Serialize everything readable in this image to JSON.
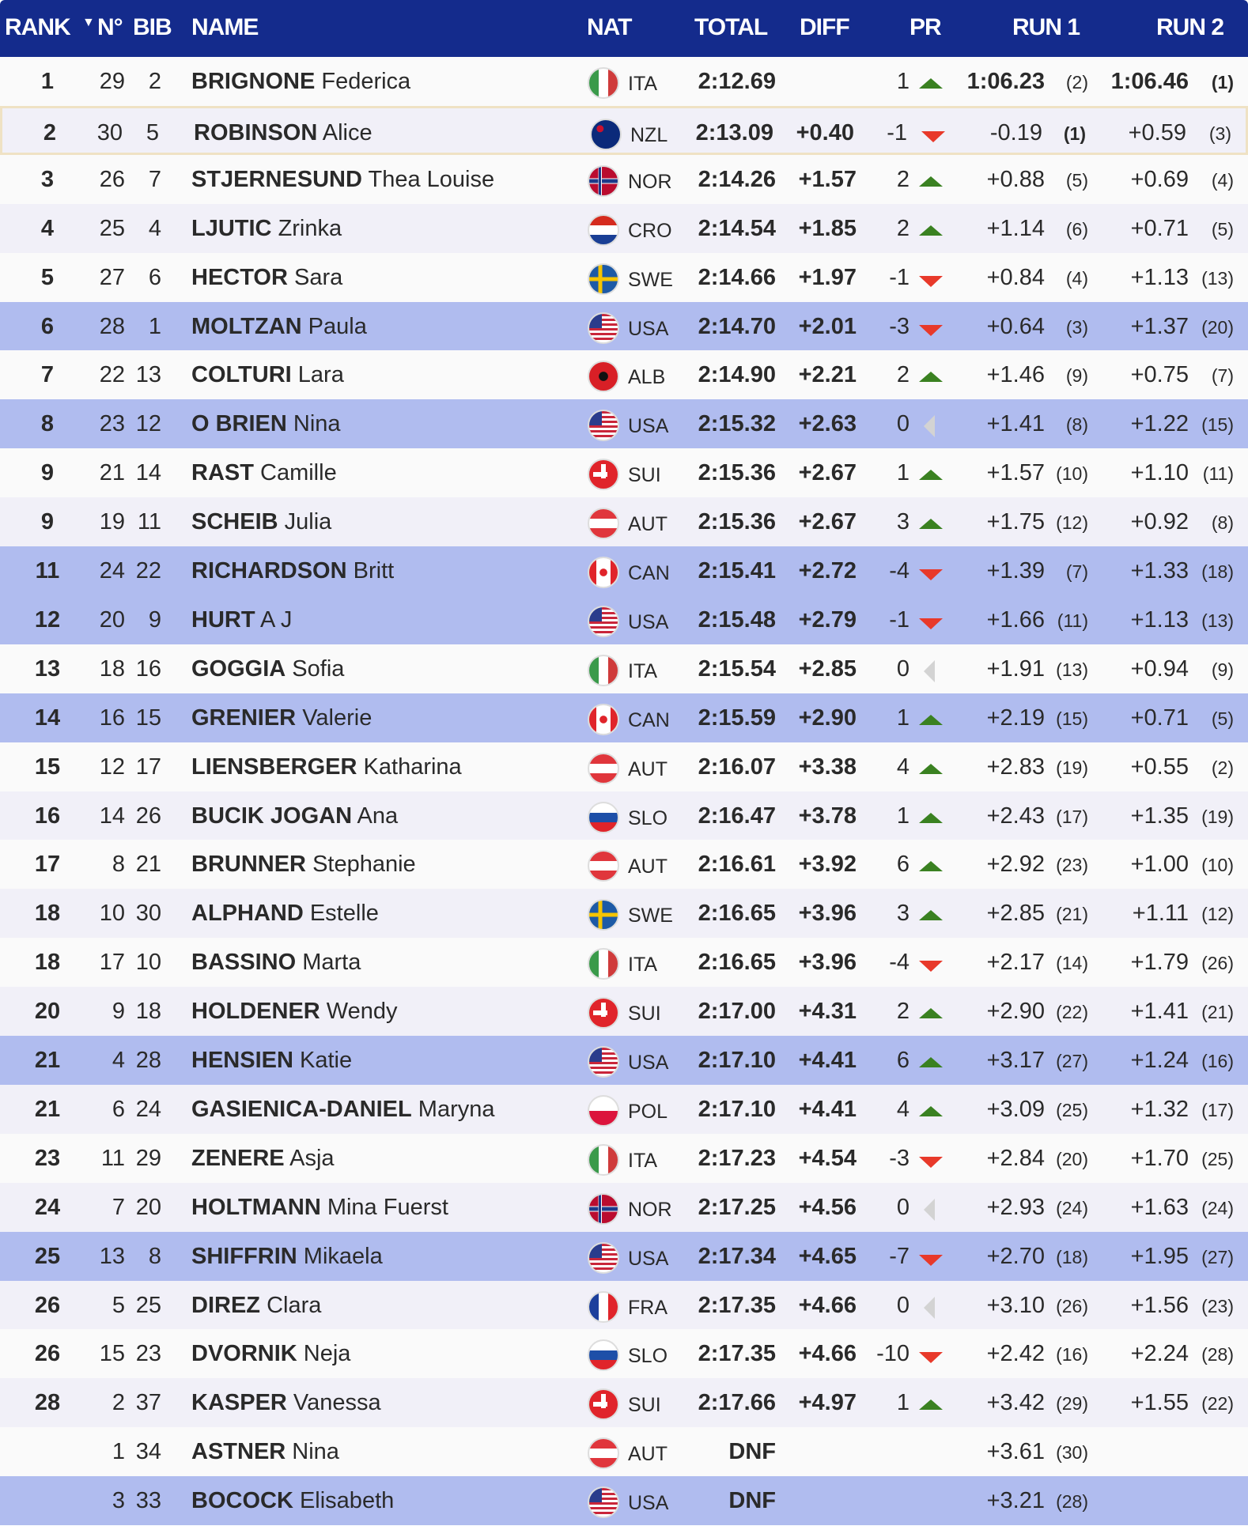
{
  "header": {
    "rank": "RANK",
    "sort_icon": "▼",
    "no": "N°",
    "bib": "BIB",
    "name": "NAME",
    "nat": "NAT",
    "total": "TOTAL",
    "diff": "DIFF",
    "pr": "PR",
    "run1": "RUN 1",
    "run2": "RUN 2"
  },
  "colors": {
    "header": "#142b8c",
    "highlight": "#b0bcef",
    "up": "#3a8121",
    "down": "#e8392a",
    "same": "#d3d3d3"
  },
  "rows": [
    {
      "rank": "1",
      "no": "29",
      "bib": "2",
      "last": "BRIGNONE",
      "first": "Federica",
      "nat": "ITA",
      "total": "2:12.69",
      "diff": "",
      "pr": "1",
      "pr_dir": "up",
      "run1": "1:06.23",
      "run1_rank": "(2)",
      "run2": "1:06.46",
      "run2_rank": "(1)",
      "best": true
    },
    {
      "rank": "2",
      "no": "30",
      "bib": "5",
      "last": "ROBINSON",
      "first": "Alice",
      "nat": "NZL",
      "total": "2:13.09",
      "diff": "+0.40",
      "pr": "-1",
      "pr_dir": "down",
      "run1": "-0.19",
      "run1_rank": "(1)",
      "run2": "+0.59",
      "run2_rank": "(3)",
      "selected": true
    },
    {
      "rank": "3",
      "no": "26",
      "bib": "7",
      "last": "STJERNESUND",
      "first": "Thea Louise",
      "nat": "NOR",
      "total": "2:14.26",
      "diff": "+1.57",
      "pr": "2",
      "pr_dir": "up",
      "run1": "+0.88",
      "run1_rank": "(5)",
      "run2": "+0.69",
      "run2_rank": "(4)"
    },
    {
      "rank": "4",
      "no": "25",
      "bib": "4",
      "last": "LJUTIC",
      "first": "Zrinka",
      "nat": "CRO",
      "total": "2:14.54",
      "diff": "+1.85",
      "pr": "2",
      "pr_dir": "up",
      "run1": "+1.14",
      "run1_rank": "(6)",
      "run2": "+0.71",
      "run2_rank": "(5)"
    },
    {
      "rank": "5",
      "no": "27",
      "bib": "6",
      "last": "HECTOR",
      "first": "Sara",
      "nat": "SWE",
      "total": "2:14.66",
      "diff": "+1.97",
      "pr": "-1",
      "pr_dir": "down",
      "run1": "+0.84",
      "run1_rank": "(4)",
      "run2": "+1.13",
      "run2_rank": "(13)"
    },
    {
      "rank": "6",
      "no": "28",
      "bib": "1",
      "last": "MOLTZAN",
      "first": "Paula",
      "nat": "USA",
      "total": "2:14.70",
      "diff": "+2.01",
      "pr": "-3",
      "pr_dir": "down",
      "run1": "+0.64",
      "run1_rank": "(3)",
      "run2": "+1.37",
      "run2_rank": "(20)",
      "highlight": true
    },
    {
      "rank": "7",
      "no": "22",
      "bib": "13",
      "last": "COLTURI",
      "first": "Lara",
      "nat": "ALB",
      "total": "2:14.90",
      "diff": "+2.21",
      "pr": "2",
      "pr_dir": "up",
      "run1": "+1.46",
      "run1_rank": "(9)",
      "run2": "+0.75",
      "run2_rank": "(7)"
    },
    {
      "rank": "8",
      "no": "23",
      "bib": "12",
      "last": "O BRIEN",
      "first": "Nina",
      "nat": "USA",
      "total": "2:15.32",
      "diff": "+2.63",
      "pr": "0",
      "pr_dir": "same",
      "run1": "+1.41",
      "run1_rank": "(8)",
      "run2": "+1.22",
      "run2_rank": "(15)",
      "highlight": true
    },
    {
      "rank": "9",
      "no": "21",
      "bib": "14",
      "last": "RAST",
      "first": "Camille",
      "nat": "SUI",
      "total": "2:15.36",
      "diff": "+2.67",
      "pr": "1",
      "pr_dir": "up",
      "run1": "+1.57",
      "run1_rank": "(10)",
      "run2": "+1.10",
      "run2_rank": "(11)"
    },
    {
      "rank": "9",
      "no": "19",
      "bib": "11",
      "last": "SCHEIB",
      "first": "Julia",
      "nat": "AUT",
      "total": "2:15.36",
      "diff": "+2.67",
      "pr": "3",
      "pr_dir": "up",
      "run1": "+1.75",
      "run1_rank": "(12)",
      "run2": "+0.92",
      "run2_rank": "(8)"
    },
    {
      "rank": "11",
      "no": "24",
      "bib": "22",
      "last": "RICHARDSON",
      "first": "Britt",
      "nat": "CAN",
      "total": "2:15.41",
      "diff": "+2.72",
      "pr": "-4",
      "pr_dir": "down",
      "run1": "+1.39",
      "run1_rank": "(7)",
      "run2": "+1.33",
      "run2_rank": "(18)",
      "highlight": true
    },
    {
      "rank": "12",
      "no": "20",
      "bib": "9",
      "last": "HURT",
      "first": "A J",
      "nat": "USA",
      "total": "2:15.48",
      "diff": "+2.79",
      "pr": "-1",
      "pr_dir": "down",
      "run1": "+1.66",
      "run1_rank": "(11)",
      "run2": "+1.13",
      "run2_rank": "(13)",
      "highlight": true
    },
    {
      "rank": "13",
      "no": "18",
      "bib": "16",
      "last": "GOGGIA",
      "first": "Sofia",
      "nat": "ITA",
      "total": "2:15.54",
      "diff": "+2.85",
      "pr": "0",
      "pr_dir": "same",
      "run1": "+1.91",
      "run1_rank": "(13)",
      "run2": "+0.94",
      "run2_rank": "(9)"
    },
    {
      "rank": "14",
      "no": "16",
      "bib": "15",
      "last": "GRENIER",
      "first": "Valerie",
      "nat": "CAN",
      "total": "2:15.59",
      "diff": "+2.90",
      "pr": "1",
      "pr_dir": "up",
      "run1": "+2.19",
      "run1_rank": "(15)",
      "run2": "+0.71",
      "run2_rank": "(5)",
      "highlight": true
    },
    {
      "rank": "15",
      "no": "12",
      "bib": "17",
      "last": "LIENSBERGER",
      "first": "Katharina",
      "nat": "AUT",
      "total": "2:16.07",
      "diff": "+3.38",
      "pr": "4",
      "pr_dir": "up",
      "run1": "+2.83",
      "run1_rank": "(19)",
      "run2": "+0.55",
      "run2_rank": "(2)"
    },
    {
      "rank": "16",
      "no": "14",
      "bib": "26",
      "last": "BUCIK JOGAN",
      "first": "Ana",
      "nat": "SLO",
      "total": "2:16.47",
      "diff": "+3.78",
      "pr": "1",
      "pr_dir": "up",
      "run1": "+2.43",
      "run1_rank": "(17)",
      "run2": "+1.35",
      "run2_rank": "(19)"
    },
    {
      "rank": "17",
      "no": "8",
      "bib": "21",
      "last": "BRUNNER",
      "first": "Stephanie",
      "nat": "AUT",
      "total": "2:16.61",
      "diff": "+3.92",
      "pr": "6",
      "pr_dir": "up",
      "run1": "+2.92",
      "run1_rank": "(23)",
      "run2": "+1.00",
      "run2_rank": "(10)"
    },
    {
      "rank": "18",
      "no": "10",
      "bib": "30",
      "last": "ALPHAND",
      "first": "Estelle",
      "nat": "SWE",
      "total": "2:16.65",
      "diff": "+3.96",
      "pr": "3",
      "pr_dir": "up",
      "run1": "+2.85",
      "run1_rank": "(21)",
      "run2": "+1.11",
      "run2_rank": "(12)"
    },
    {
      "rank": "18",
      "no": "17",
      "bib": "10",
      "last": "BASSINO",
      "first": "Marta",
      "nat": "ITA",
      "total": "2:16.65",
      "diff": "+3.96",
      "pr": "-4",
      "pr_dir": "down",
      "run1": "+2.17",
      "run1_rank": "(14)",
      "run2": "+1.79",
      "run2_rank": "(26)"
    },
    {
      "rank": "20",
      "no": "9",
      "bib": "18",
      "last": "HOLDENER",
      "first": "Wendy",
      "nat": "SUI",
      "total": "2:17.00",
      "diff": "+4.31",
      "pr": "2",
      "pr_dir": "up",
      "run1": "+2.90",
      "run1_rank": "(22)",
      "run2": "+1.41",
      "run2_rank": "(21)"
    },
    {
      "rank": "21",
      "no": "4",
      "bib": "28",
      "last": "HENSIEN",
      "first": "Katie",
      "nat": "USA",
      "total": "2:17.10",
      "diff": "+4.41",
      "pr": "6",
      "pr_dir": "up",
      "run1": "+3.17",
      "run1_rank": "(27)",
      "run2": "+1.24",
      "run2_rank": "(16)",
      "highlight": true
    },
    {
      "rank": "21",
      "no": "6",
      "bib": "24",
      "last": "GASIENICA-DANIEL",
      "first": "Maryna",
      "nat": "POL",
      "total": "2:17.10",
      "diff": "+4.41",
      "pr": "4",
      "pr_dir": "up",
      "run1": "+3.09",
      "run1_rank": "(25)",
      "run2": "+1.32",
      "run2_rank": "(17)"
    },
    {
      "rank": "23",
      "no": "11",
      "bib": "29",
      "last": "ZENERE",
      "first": "Asja",
      "nat": "ITA",
      "total": "2:17.23",
      "diff": "+4.54",
      "pr": "-3",
      "pr_dir": "down",
      "run1": "+2.84",
      "run1_rank": "(20)",
      "run2": "+1.70",
      "run2_rank": "(25)"
    },
    {
      "rank": "24",
      "no": "7",
      "bib": "20",
      "last": "HOLTMANN",
      "first": "Mina Fuerst",
      "nat": "NOR",
      "total": "2:17.25",
      "diff": "+4.56",
      "pr": "0",
      "pr_dir": "same",
      "run1": "+2.93",
      "run1_rank": "(24)",
      "run2": "+1.63",
      "run2_rank": "(24)"
    },
    {
      "rank": "25",
      "no": "13",
      "bib": "8",
      "last": "SHIFFRIN",
      "first": "Mikaela",
      "nat": "USA",
      "total": "2:17.34",
      "diff": "+4.65",
      "pr": "-7",
      "pr_dir": "down",
      "run1": "+2.70",
      "run1_rank": "(18)",
      "run2": "+1.95",
      "run2_rank": "(27)",
      "highlight": true
    },
    {
      "rank": "26",
      "no": "5",
      "bib": "25",
      "last": "DIREZ",
      "first": "Clara",
      "nat": "FRA",
      "total": "2:17.35",
      "diff": "+4.66",
      "pr": "0",
      "pr_dir": "same",
      "run1": "+3.10",
      "run1_rank": "(26)",
      "run2": "+1.56",
      "run2_rank": "(23)"
    },
    {
      "rank": "26",
      "no": "15",
      "bib": "23",
      "last": "DVORNIK",
      "first": "Neja",
      "nat": "SLO",
      "total": "2:17.35",
      "diff": "+4.66",
      "pr": "-10",
      "pr_dir": "down",
      "run1": "+2.42",
      "run1_rank": "(16)",
      "run2": "+2.24",
      "run2_rank": "(28)"
    },
    {
      "rank": "28",
      "no": "2",
      "bib": "37",
      "last": "KASPER",
      "first": "Vanessa",
      "nat": "SUI",
      "total": "2:17.66",
      "diff": "+4.97",
      "pr": "1",
      "pr_dir": "up",
      "run1": "+3.42",
      "run1_rank": "(29)",
      "run2": "+1.55",
      "run2_rank": "(22)"
    },
    {
      "rank": "",
      "no": "1",
      "bib": "34",
      "last": "ASTNER",
      "first": "Nina",
      "nat": "AUT",
      "total": "DNF",
      "diff": "",
      "pr": "",
      "pr_dir": "",
      "run1": "+3.61",
      "run1_rank": "(30)",
      "run2": "",
      "run2_rank": ""
    },
    {
      "rank": "",
      "no": "3",
      "bib": "33",
      "last": "BOCOCK",
      "first": "Elisabeth",
      "nat": "USA",
      "total": "DNF",
      "diff": "",
      "pr": "",
      "pr_dir": "",
      "run1": "+3.21",
      "run1_rank": "(28)",
      "run2": "",
      "run2_rank": "",
      "highlight": true
    }
  ]
}
